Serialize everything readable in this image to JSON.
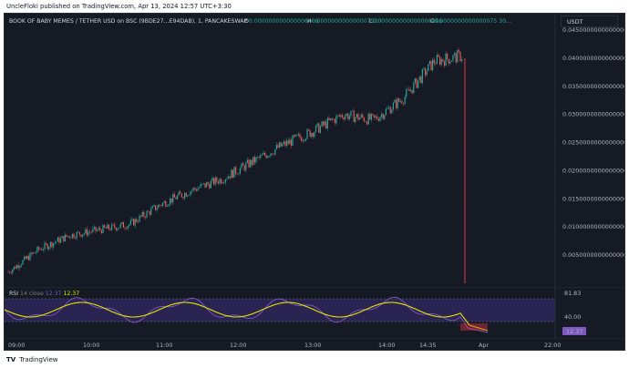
{
  "header": {
    "published_text": "UncleFloki published on TradingView.com, Apr 13, 2024 12:57 UTC+3:30"
  },
  "symbol_legend": {
    "symbol": "BOOK OF BABY MEMES / TETHER USD on BSC (9BDE27…E94DAB), 1, PANCAKESWAP",
    "open_label": "O",
    "open_value": "0.000000000000006406",
    "high_label": "H",
    "high_value": "0.000000000000007530",
    "low_label": "L",
    "low_value": "0.000000000000006406",
    "close_label": "C",
    "close_value": "0.0000000000000075 30…",
    "up_color": "#26a69a",
    "down_color": "#ef5350",
    "line_color": "#f23645"
  },
  "currency": {
    "label": "USDT"
  },
  "price_axis": {
    "labels": [
      "0.045000000000000000",
      "0.040000000000000000",
      "0.035000000000000000",
      "0.030000000000000000",
      "0.025000000000000000",
      "0.020000000000000000",
      "0.015000000000000000",
      "0.010000000000000000",
      "0.005000000000000000"
    ]
  },
  "rsi": {
    "label": "RSI",
    "params": "14  close",
    "value_1": "12.37",
    "value_2": "12.37",
    "axis_labels": [
      "81.83",
      "40.00"
    ],
    "current_value": "12.37",
    "rsi_color": "#7e57c2",
    "ma_color": "#e5e500",
    "band_color": "#2a2452"
  },
  "time_axis": {
    "labels": [
      "09:00",
      "10:00",
      "11:00",
      "12:00",
      "13:00",
      "14:00",
      "14:35",
      "Apr",
      "22:00"
    ]
  },
  "footer": {
    "brand": "TradingView"
  },
  "chart_data": {
    "type": "candlestick",
    "title": "BOOK OF BABY MEMES / TETHER USD on BSC (9BDE27…E94DAB), 1, PANCAKESWAP",
    "y_axis_range": [
      0.0,
      0.045
    ],
    "y_ticks": [
      0.045,
      0.04,
      0.035,
      0.03,
      0.025,
      0.02,
      0.015,
      0.01,
      0.005
    ],
    "x_ticks": [
      "09:00",
      "10:00",
      "11:00",
      "12:00",
      "13:00",
      "14:00",
      "14:35",
      "Apr",
      "22:00"
    ],
    "price_trend": {
      "x": [
        "08:59",
        "09:30",
        "10:00",
        "10:30",
        "11:00",
        "11:30",
        "12:00",
        "12:30",
        "13:00",
        "13:20",
        "13:40",
        "14:00",
        "14:20",
        "14:35",
        "14:50",
        "15:00",
        "15:05"
      ],
      "close": [
        0.002,
        0.006,
        0.0085,
        0.0095,
        0.0105,
        0.014,
        0.0165,
        0.0185,
        0.0215,
        0.0245,
        0.027,
        0.03,
        0.029,
        0.033,
        0.0395,
        0.0405,
        0.0
      ]
    },
    "rsi_range": [
      0,
      100
    ],
    "rsi_last": 12.37,
    "rsi_band": [
      40.0,
      81.83
    ]
  }
}
